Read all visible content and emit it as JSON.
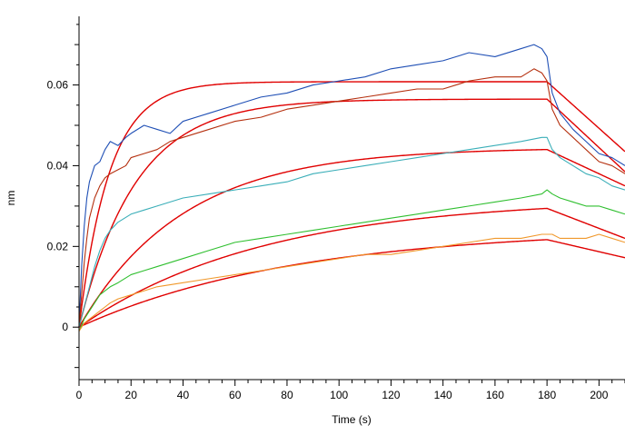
{
  "chart_data": {
    "type": "line",
    "title": "",
    "xlabel": "Time (s)",
    "ylabel": "nm",
    "xlim": [
      0,
      210
    ],
    "ylim": [
      -0.013,
      0.077
    ],
    "x_ticks": [
      0,
      20,
      40,
      60,
      80,
      100,
      120,
      140,
      160,
      180,
      200
    ],
    "x_tick_labels": [
      "0",
      "20",
      "40",
      "60",
      "80",
      "100",
      "120",
      "140",
      "160",
      "180",
      "200"
    ],
    "y_ticks": [
      0,
      0.02,
      0.04,
      0.06
    ],
    "y_tick_labels": [
      "0",
      "0.02",
      "0.04",
      "0.06"
    ],
    "grid": false,
    "legend": "none",
    "association_end": 180,
    "series": [
      {
        "color": "#1f4fb5",
        "x": [
          0,
          1,
          2,
          3,
          4,
          5,
          6,
          8,
          10,
          12,
          15,
          18,
          20,
          25,
          30,
          35,
          40,
          50,
          60,
          70,
          80,
          90,
          100,
          110,
          120,
          130,
          140,
          150,
          160,
          170,
          175,
          178,
          180,
          182,
          185,
          190,
          195,
          200,
          205,
          210
        ],
        "y": [
          0.0,
          0.015,
          0.025,
          0.032,
          0.036,
          0.038,
          0.04,
          0.041,
          0.044,
          0.046,
          0.045,
          0.047,
          0.048,
          0.05,
          0.049,
          0.048,
          0.051,
          0.053,
          0.055,
          0.057,
          0.058,
          0.06,
          0.061,
          0.062,
          0.064,
          0.065,
          0.066,
          0.068,
          0.067,
          0.069,
          0.07,
          0.069,
          0.067,
          0.058,
          0.053,
          0.049,
          0.046,
          0.043,
          0.042,
          0.04
        ]
      },
      {
        "color": "#b5300f",
        "x": [
          0,
          1,
          2,
          3,
          4,
          6,
          8,
          10,
          12,
          15,
          18,
          20,
          25,
          30,
          35,
          40,
          50,
          60,
          70,
          80,
          90,
          100,
          110,
          120,
          130,
          140,
          150,
          160,
          170,
          175,
          178,
          180,
          182,
          185,
          190,
          195,
          200,
          205,
          210
        ],
        "y": [
          0.0,
          0.008,
          0.016,
          0.022,
          0.027,
          0.032,
          0.035,
          0.037,
          0.038,
          0.039,
          0.04,
          0.042,
          0.043,
          0.044,
          0.046,
          0.047,
          0.049,
          0.051,
          0.052,
          0.054,
          0.055,
          0.056,
          0.057,
          0.058,
          0.059,
          0.059,
          0.061,
          0.062,
          0.062,
          0.064,
          0.063,
          0.061,
          0.054,
          0.05,
          0.047,
          0.044,
          0.041,
          0.04,
          0.038
        ]
      },
      {
        "color": "#3aaeb8",
        "x": [
          0,
          2,
          4,
          6,
          8,
          10,
          12,
          15,
          20,
          25,
          30,
          40,
          50,
          60,
          70,
          80,
          90,
          100,
          110,
          120,
          130,
          140,
          150,
          160,
          170,
          178,
          180,
          182,
          185,
          190,
          195,
          200,
          205,
          210
        ],
        "y": [
          0.0,
          0.005,
          0.01,
          0.015,
          0.019,
          0.022,
          0.024,
          0.026,
          0.028,
          0.029,
          0.03,
          0.032,
          0.033,
          0.034,
          0.035,
          0.036,
          0.038,
          0.039,
          0.04,
          0.041,
          0.042,
          0.043,
          0.044,
          0.045,
          0.046,
          0.047,
          0.047,
          0.044,
          0.042,
          0.04,
          0.038,
          0.037,
          0.035,
          0.034
        ]
      },
      {
        "color": "#2fbf2f",
        "x": [
          0,
          2,
          4,
          6,
          8,
          10,
          12,
          15,
          20,
          25,
          30,
          40,
          50,
          60,
          70,
          80,
          90,
          100,
          110,
          120,
          130,
          140,
          150,
          160,
          170,
          178,
          180,
          182,
          185,
          190,
          195,
          200,
          205,
          210
        ],
        "y": [
          -0.001,
          0.002,
          0.004,
          0.006,
          0.008,
          0.009,
          0.01,
          0.011,
          0.013,
          0.014,
          0.015,
          0.017,
          0.019,
          0.021,
          0.022,
          0.023,
          0.024,
          0.025,
          0.026,
          0.027,
          0.028,
          0.029,
          0.03,
          0.031,
          0.032,
          0.033,
          0.034,
          0.033,
          0.032,
          0.031,
          0.03,
          0.03,
          0.029,
          0.028
        ]
      },
      {
        "color": "#f0982b",
        "x": [
          0,
          2,
          4,
          6,
          8,
          10,
          12,
          15,
          20,
          25,
          30,
          40,
          50,
          60,
          70,
          80,
          90,
          100,
          110,
          120,
          130,
          140,
          150,
          160,
          170,
          178,
          180,
          182,
          185,
          190,
          195,
          200,
          205,
          210
        ],
        "y": [
          -0.001,
          0.001,
          0.002,
          0.003,
          0.004,
          0.005,
          0.006,
          0.007,
          0.008,
          0.009,
          0.01,
          0.011,
          0.012,
          0.013,
          0.014,
          0.015,
          0.016,
          0.017,
          0.018,
          0.018,
          0.019,
          0.02,
          0.021,
          0.022,
          0.022,
          0.023,
          0.023,
          0.023,
          0.022,
          0.022,
          0.022,
          0.023,
          0.022,
          0.021
        ]
      }
    ],
    "fits": [
      {
        "color": "#e00000",
        "rmax": 0.0608,
        "kobs": 0.085,
        "kd": 0.0046,
        "end": 0.0435
      },
      {
        "color": "#e00000",
        "rmax": 0.0565,
        "kobs": 0.046,
        "kd": 0.005,
        "end": 0.0385
      },
      {
        "color": "#e00000",
        "rmax": 0.0445,
        "kobs": 0.025,
        "kd": 0.004,
        "end": 0.035
      },
      {
        "color": "#e00000",
        "rmax": 0.032,
        "kobs": 0.014,
        "kd": 0.003,
        "end": 0.022
      },
      {
        "color": "#e00000",
        "rmax": 0.0245,
        "kobs": 0.012,
        "kd": 0.003,
        "end": 0.0172
      }
    ]
  }
}
